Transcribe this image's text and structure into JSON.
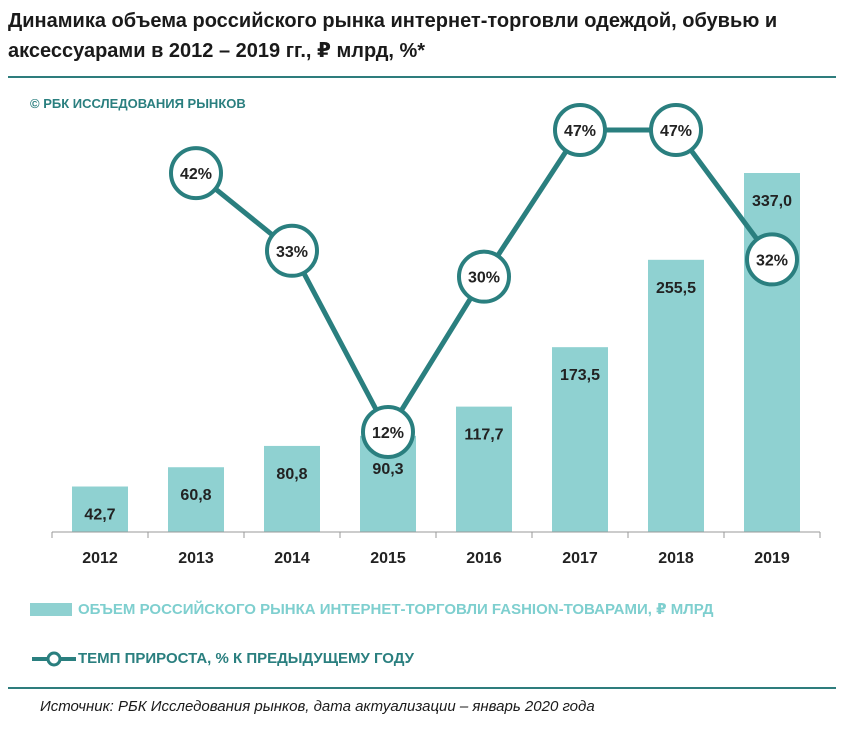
{
  "title": "Динамика объема российского рынка интернет-торговли одеждой, обувью и аксессуарами в 2012 – 2019 гг., ₽ млрд, %*",
  "copyright": "© РБК ИССЛЕДОВАНИЯ РЫНКОВ",
  "source": "Источник: РБК Исследования рынков, дата актуализации – январь 2020 года",
  "colors": {
    "bar": "#8fd1d1",
    "line": "#2a7f7f",
    "rule": "#2e7d7d"
  },
  "chart_data": {
    "type": "bar",
    "categories": [
      "2012",
      "2013",
      "2014",
      "2015",
      "2016",
      "2017",
      "2018",
      "2019"
    ],
    "series": [
      {
        "name": "ОБЪЕМ РОССИЙСКОГО РЫНКА ИНТЕРНЕТ-ТОРГОВЛИ FASHION-ТОВАРАМИ, ₽ МЛРД",
        "type": "bar",
        "values": [
          42.7,
          60.8,
          80.8,
          90.3,
          117.7,
          173.5,
          255.5,
          337.0
        ],
        "labels": [
          "42,7",
          "60,8",
          "80,8",
          "90,3",
          "117,7",
          "173,5",
          "255,5",
          "337,0"
        ]
      },
      {
        "name": "ТЕМП ПРИРОСТА, % К ПРЕДЫДУЩЕМУ ГОДУ",
        "type": "line",
        "values": [
          null,
          42,
          33,
          12,
          30,
          47,
          47,
          32
        ],
        "labels": [
          "",
          "42%",
          "33%",
          "12%",
          "30%",
          "47%",
          "47%",
          "32%"
        ]
      }
    ],
    "legend_position": "bottom",
    "grid": false
  }
}
